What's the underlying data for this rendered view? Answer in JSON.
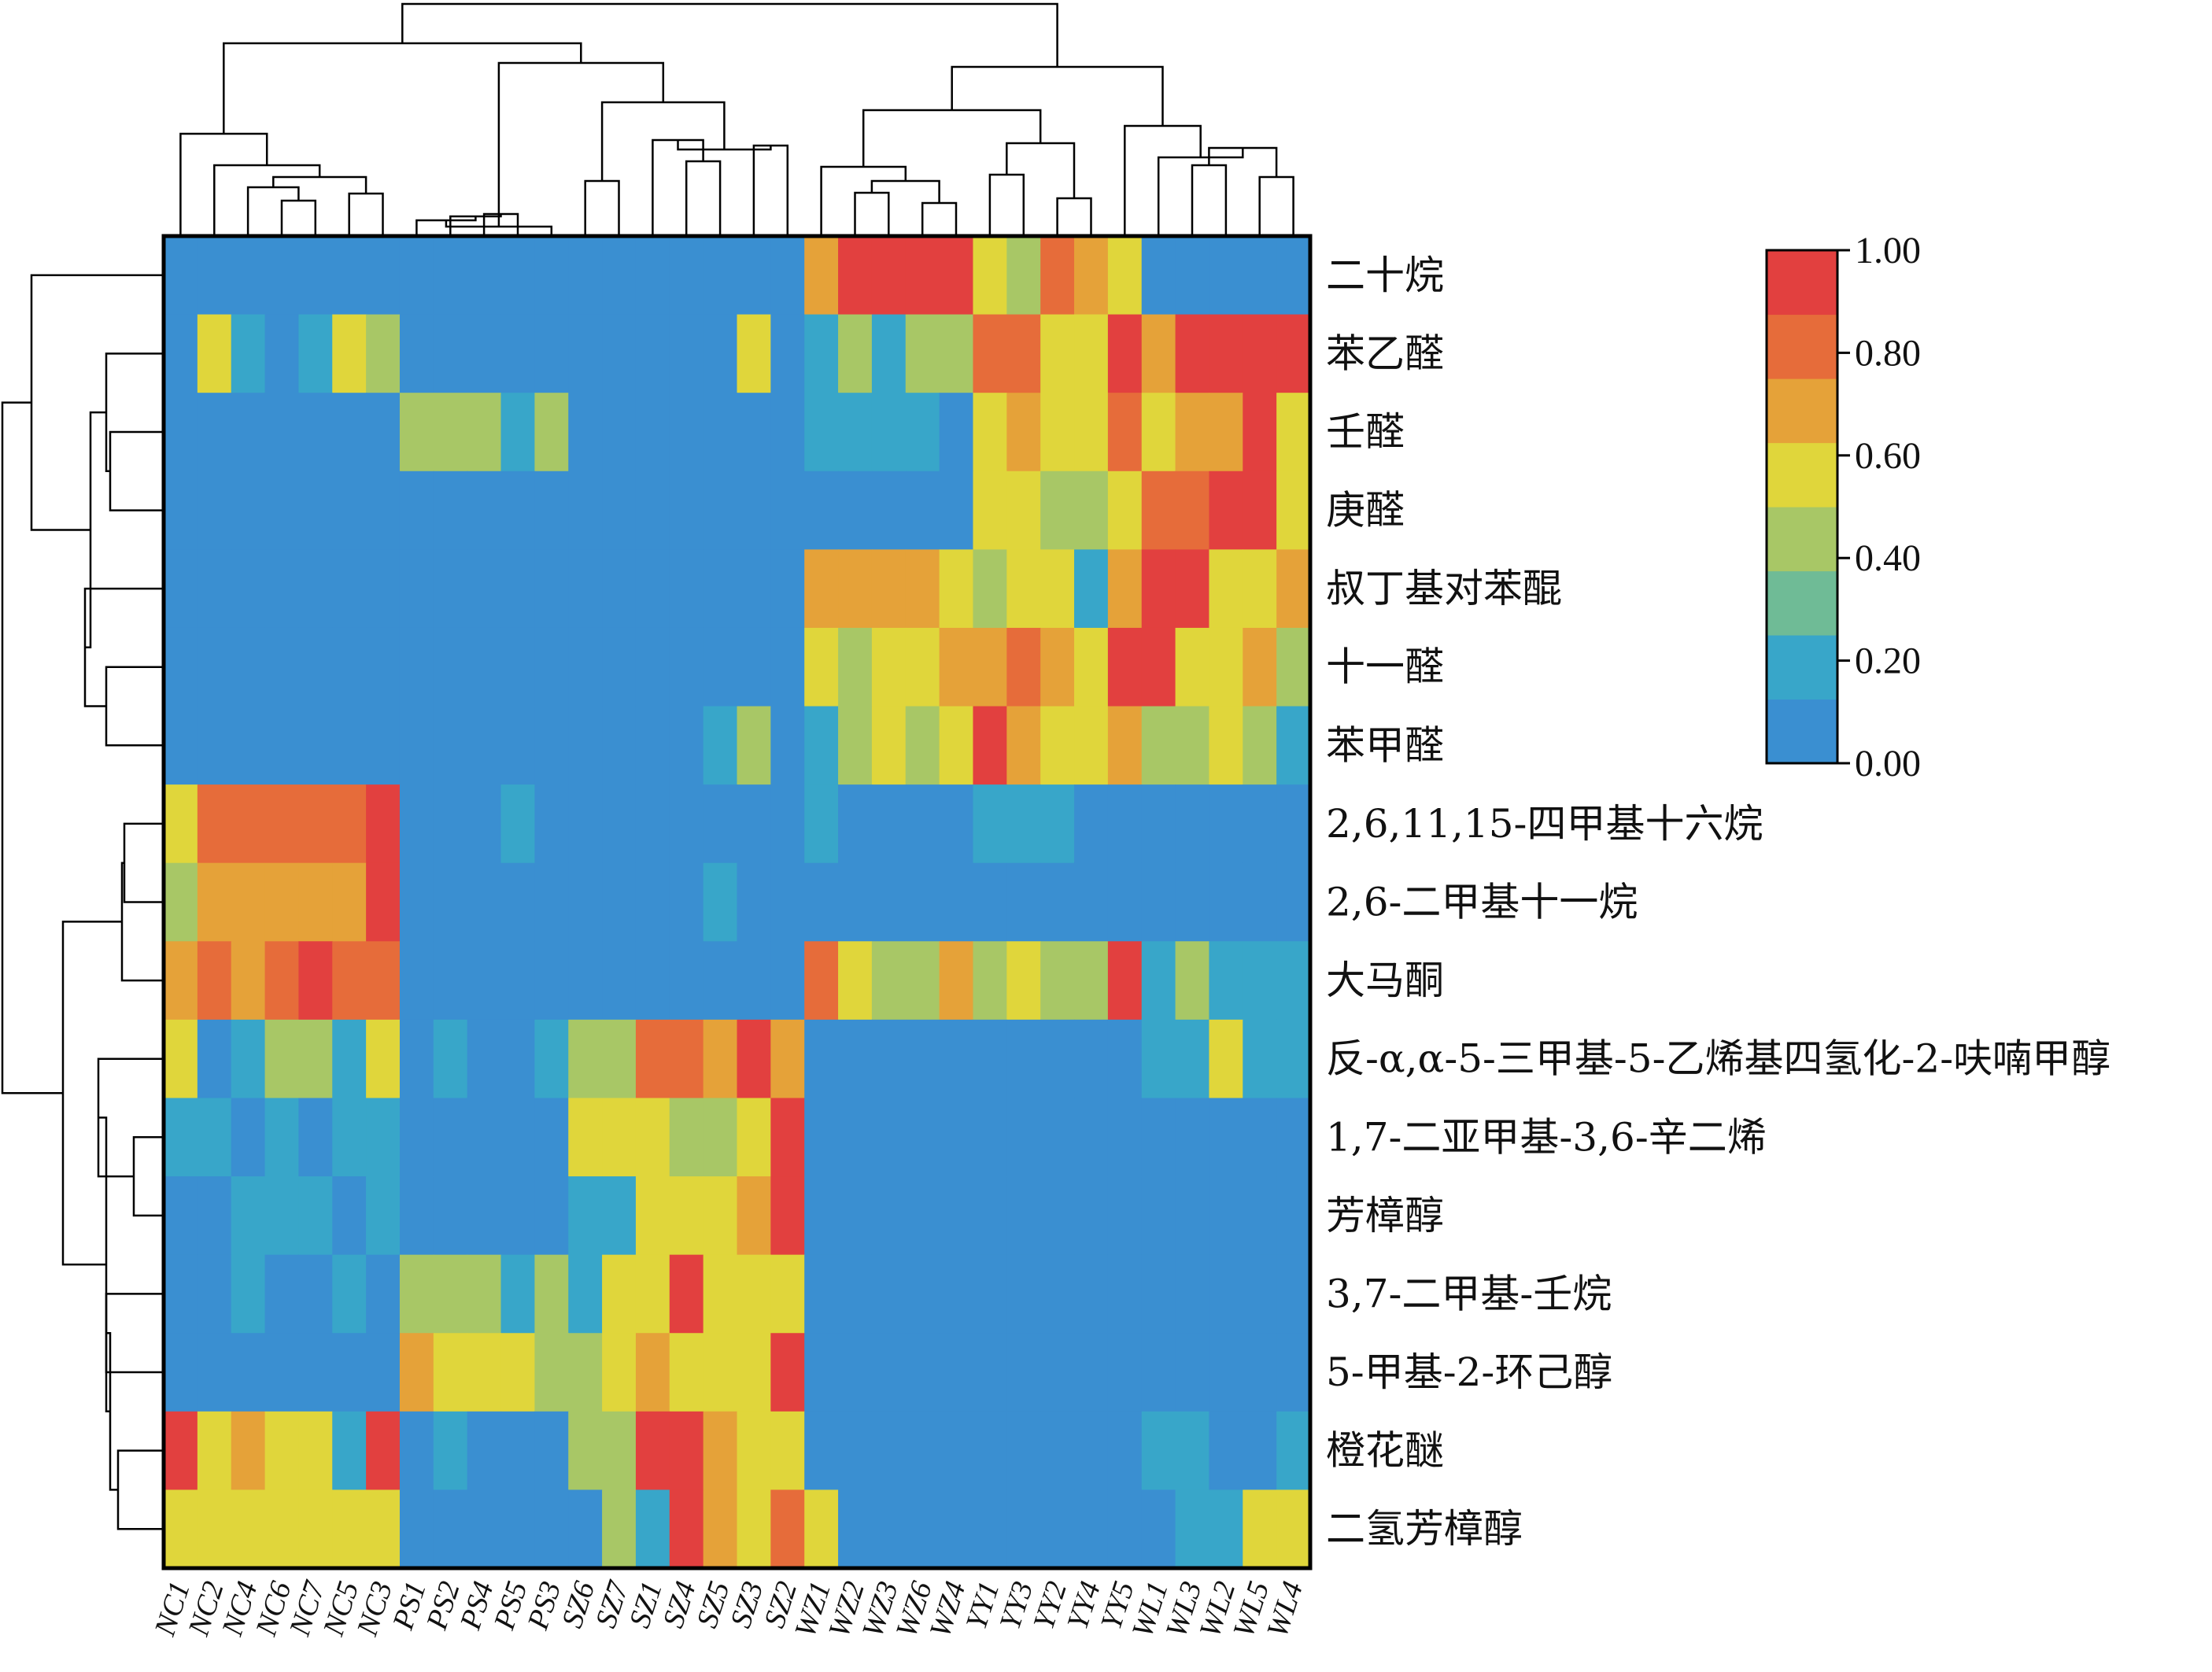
{
  "chart_data": {
    "type": "heatmap",
    "title": "",
    "colorbar": {
      "min": 0,
      "max": 1,
      "tick_labels": [
        "1.00",
        "0.80",
        "0.60",
        "0.40",
        "0.20",
        "0.00"
      ],
      "colors": [
        "#3a8fd1",
        "#38a6c9",
        "#6fbb96",
        "#a8c766",
        "#e0d63b",
        "#e5a239",
        "#e66c3a",
        "#e2403f"
      ]
    },
    "columns": [
      "NC1",
      "NC2",
      "NC4",
      "NC6",
      "NC7",
      "NC5",
      "NC3",
      "PS1",
      "PS2",
      "PS4",
      "PS5",
      "PS3",
      "SZ6",
      "SZ7",
      "SZ1",
      "SZ4",
      "SZ5",
      "SZ3",
      "SZ2",
      "WZ1",
      "WZ2",
      "WZ3",
      "WZ6",
      "WZ4",
      "YY1",
      "YY3",
      "YY2",
      "YY4",
      "YY5",
      "WL1",
      "WL3",
      "WL2",
      "WL5",
      "WL4"
    ],
    "rows": [
      "二十烷",
      "苯乙醛",
      "壬醛",
      "庚醛",
      "叔丁基对苯醌",
      "十一醛",
      "苯甲醛",
      "2,6,11,15-四甲基十六烷",
      "2,6-二甲基十一烷",
      "大马酮",
      "反-α,α-5-三甲基-5-乙烯基四氢化-2-呋喃甲醇",
      "1,7-二亚甲基-3,6-辛二烯",
      "芳樟醇",
      "3,7-二甲基-壬烷",
      "5-甲基-2-环己醇",
      "橙花醚",
      "二氢芳樟醇"
    ],
    "values": [
      [
        0,
        0,
        0,
        0,
        0,
        0,
        0,
        0,
        0,
        0,
        0,
        0,
        0,
        0,
        0,
        0,
        0,
        0,
        0,
        0.7,
        1,
        1,
        1,
        1,
        0.6,
        0.4,
        0.8,
        0.7,
        0.5,
        0,
        0,
        0,
        0,
        0
      ],
      [
        0,
        0.6,
        0.2,
        0,
        0.2,
        0.5,
        0.4,
        0,
        0,
        0,
        0,
        0,
        0,
        0,
        0,
        0,
        0,
        0.5,
        0,
        0.2,
        0.4,
        0.2,
        0.4,
        0.4,
        0.8,
        0.8,
        0.6,
        0.6,
        1,
        0.7,
        1,
        1,
        1,
        1
      ],
      [
        0,
        0,
        0,
        0,
        0,
        0,
        0,
        0.4,
        0.4,
        0.4,
        0.2,
        0.4,
        0,
        0,
        0,
        0,
        0,
        0,
        0,
        0.2,
        0.2,
        0.2,
        0.2,
        0,
        0.5,
        0.7,
        0.5,
        0.5,
        0.8,
        0.5,
        0.7,
        0.7,
        1,
        0.6
      ],
      [
        0,
        0,
        0,
        0,
        0,
        0,
        0,
        0,
        0,
        0,
        0,
        0,
        0,
        0,
        0,
        0,
        0,
        0,
        0,
        0,
        0,
        0,
        0,
        0,
        0.5,
        0.6,
        0.4,
        0.4,
        0.6,
        0.8,
        0.8,
        1,
        1,
        0.6
      ],
      [
        0,
        0,
        0,
        0,
        0,
        0,
        0,
        0,
        0,
        0,
        0,
        0,
        0,
        0,
        0,
        0,
        0,
        0,
        0,
        0.7,
        0.7,
        0.7,
        0.7,
        0.6,
        0.4,
        0.5,
        0.5,
        0.2,
        0.7,
        1,
        1,
        0.6,
        0.6,
        0.7
      ],
      [
        0,
        0,
        0,
        0,
        0,
        0,
        0,
        0,
        0,
        0,
        0,
        0,
        0,
        0,
        0,
        0,
        0,
        0,
        0,
        0.6,
        0.4,
        0.5,
        0.5,
        0.7,
        0.7,
        0.8,
        0.7,
        0.6,
        1,
        1,
        0.5,
        0.6,
        0.7,
        0.4
      ],
      [
        0,
        0,
        0,
        0,
        0,
        0,
        0,
        0,
        0,
        0,
        0,
        0,
        0,
        0,
        0,
        0,
        0.2,
        0.4,
        0,
        0.2,
        0.4,
        0.5,
        0.4,
        0.5,
        1,
        0.7,
        0.5,
        0.5,
        0.7,
        0.4,
        0.4,
        0.5,
        0.4,
        0.2
      ],
      [
        0.6,
        0.8,
        0.8,
        0.8,
        0.8,
        0.8,
        1,
        0,
        0,
        0,
        0.2,
        0,
        0,
        0,
        0,
        0,
        0,
        0,
        0,
        0.2,
        0,
        0,
        0,
        0,
        0.2,
        0.2,
        0.2,
        0,
        0,
        0,
        0,
        0,
        0,
        0
      ],
      [
        0.4,
        0.7,
        0.7,
        0.7,
        0.7,
        0.7,
        1,
        0,
        0,
        0,
        0,
        0,
        0,
        0,
        0,
        0,
        0.2,
        0,
        0,
        0,
        0,
        0,
        0,
        0,
        0,
        0,
        0,
        0,
        0,
        0,
        0,
        0,
        0,
        0
      ],
      [
        0.7,
        0.8,
        0.7,
        0.8,
        1,
        0.8,
        0.8,
        0,
        0,
        0,
        0,
        0,
        0,
        0,
        0,
        0,
        0,
        0,
        0,
        0.8,
        0.6,
        0.4,
        0.4,
        0.7,
        0.4,
        0.5,
        0.4,
        0.4,
        1,
        0.2,
        0.4,
        0.2,
        0.2,
        0.2
      ],
      [
        0.5,
        0,
        0.2,
        0.4,
        0.4,
        0.2,
        0.5,
        0,
        0.2,
        0,
        0,
        0.2,
        0.4,
        0.4,
        0.8,
        0.8,
        0.7,
        1,
        0.7,
        0,
        0,
        0,
        0,
        0,
        0,
        0,
        0,
        0,
        0,
        0.2,
        0.2,
        0.5,
        0.2,
        0.2
      ],
      [
        0.2,
        0.2,
        0,
        0.2,
        0,
        0.2,
        0.2,
        0,
        0,
        0,
        0,
        0,
        0.6,
        0.6,
        0.5,
        0.4,
        0.4,
        0.6,
        1,
        0,
        0,
        0,
        0,
        0,
        0,
        0,
        0,
        0,
        0,
        0,
        0,
        0,
        0,
        0
      ],
      [
        0,
        0,
        0.2,
        0.2,
        0.2,
        0,
        0.2,
        0,
        0,
        0,
        0,
        0,
        0.2,
        0.2,
        0.5,
        0.5,
        0.5,
        0.7,
        1,
        0,
        0,
        0,
        0,
        0,
        0,
        0,
        0,
        0,
        0,
        0,
        0,
        0,
        0,
        0
      ],
      [
        0,
        0,
        0.2,
        0,
        0,
        0.2,
        0,
        0.4,
        0.4,
        0.4,
        0.2,
        0.4,
        0.2,
        0.6,
        0.6,
        1,
        0.6,
        0.6,
        0.6,
        0,
        0,
        0,
        0,
        0,
        0,
        0,
        0,
        0,
        0,
        0,
        0,
        0,
        0,
        0
      ],
      [
        0,
        0,
        0,
        0,
        0,
        0,
        0,
        0.7,
        0.5,
        0.5,
        0.6,
        0.4,
        0.4,
        0.6,
        0.7,
        0.5,
        0.6,
        0.6,
        1,
        0,
        0,
        0,
        0,
        0,
        0,
        0,
        0,
        0,
        0,
        0,
        0,
        0,
        0,
        0
      ],
      [
        1,
        0.6,
        0.7,
        0.5,
        0.6,
        0.2,
        1,
        0,
        0.2,
        0,
        0,
        0,
        0.4,
        0.4,
        1,
        1,
        0.7,
        0.6,
        0.6,
        0,
        0,
        0,
        0,
        0,
        0,
        0,
        0,
        0,
        0,
        0.2,
        0.2,
        0,
        0,
        0.2
      ],
      [
        0.6,
        0.5,
        0.5,
        0.5,
        0.5,
        0.6,
        0.6,
        0,
        0,
        0,
        0,
        0,
        0,
        0.4,
        0.2,
        1,
        0.7,
        0.6,
        0.8,
        0.6,
        0,
        0,
        0,
        0,
        0,
        0,
        0,
        0,
        0,
        0,
        0.2,
        0.2,
        0.5,
        0.5
      ]
    ]
  }
}
